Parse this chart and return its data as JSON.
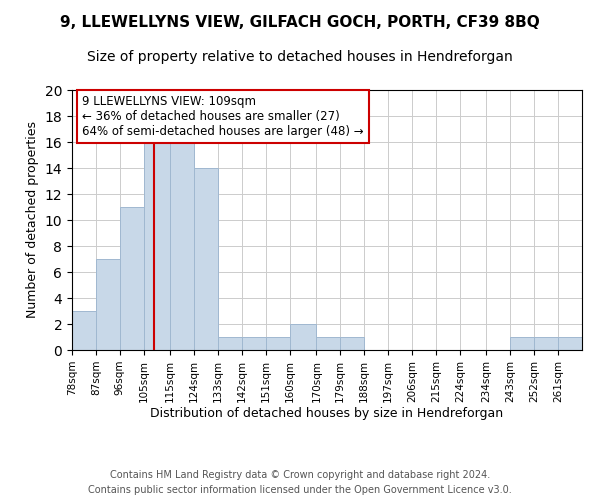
{
  "title": "9, LLEWELLYNS VIEW, GILFACH GOCH, PORTH, CF39 8BQ",
  "subtitle": "Size of property relative to detached houses in Hendreforgan",
  "xlabel": "Distribution of detached houses by size in Hendreforgan",
  "ylabel": "Number of detached properties",
  "footer_line1": "Contains HM Land Registry data © Crown copyright and database right 2024.",
  "footer_line2": "Contains public sector information licensed under the Open Government Licence v3.0.",
  "bin_edges": [
    78,
    87,
    96,
    105,
    115,
    124,
    133,
    142,
    151,
    160,
    170,
    179,
    188,
    197,
    206,
    215,
    224,
    234,
    243,
    252,
    261,
    270
  ],
  "bin_labels": [
    "78sqm",
    "87sqm",
    "96sqm",
    "105sqm",
    "115sqm",
    "124sqm",
    "133sqm",
    "142sqm",
    "151sqm",
    "160sqm",
    "170sqm",
    "179sqm",
    "188sqm",
    "197sqm",
    "206sqm",
    "215sqm",
    "224sqm",
    "234sqm",
    "243sqm",
    "252sqm",
    "261sqm"
  ],
  "counts": [
    3,
    7,
    11,
    16,
    16,
    14,
    1,
    1,
    1,
    2,
    1,
    1,
    0,
    0,
    0,
    0,
    0,
    0,
    1,
    1,
    1
  ],
  "bar_color": "#c8d8e8",
  "bar_edge_color": "#a0b8d0",
  "vline_x": 109,
  "vline_color": "#cc0000",
  "ylim": [
    0,
    20
  ],
  "yticks": [
    0,
    2,
    4,
    6,
    8,
    10,
    12,
    14,
    16,
    18,
    20
  ],
  "annotation_title": "9 LLEWELLYNS VIEW: 109sqm",
  "annotation_line1": "← 36% of detached houses are smaller (27)",
  "annotation_line2": "64% of semi-detached houses are larger (48) →",
  "annotation_box_color": "#ffffff",
  "annotation_box_edge": "#cc0000",
  "title_fontsize": 11,
  "subtitle_fontsize": 10,
  "axis_label_fontsize": 9,
  "tick_label_fontsize": 7.5,
  "annotation_fontsize": 8.5,
  "footer_fontsize": 7
}
